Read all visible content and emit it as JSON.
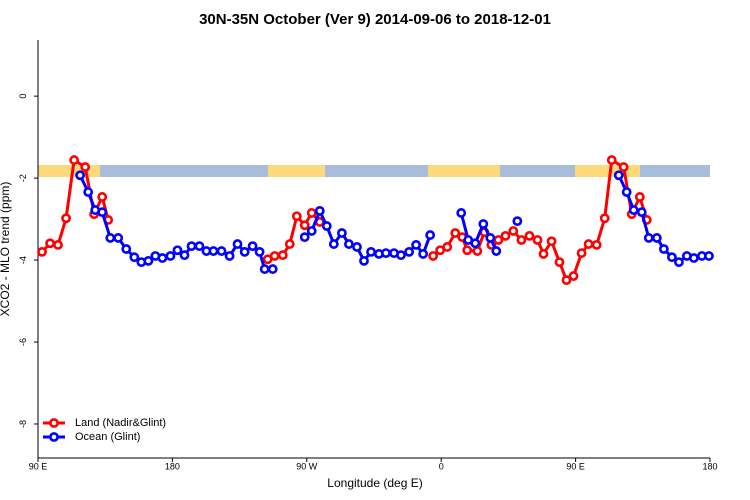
{
  "chart_data": {
    "type": "line",
    "title": "30N-35N October (Ver 9)   2014-09-06 to 2018-12-01",
    "x_label": "Longitude (deg E)",
    "y_label": "XCO2 - MLO trend (ppm)",
    "xlim": [
      90,
      540
    ],
    "ylim": [
      -8.83,
      1.37
    ],
    "xticks": [
      {
        "value": 90,
        "label": "90 E"
      },
      180,
      {
        "value": 270,
        "label": "90 W"
      },
      {
        "value": 360,
        "label": "0"
      },
      {
        "value": 450,
        "label": "90 E"
      },
      {
        "value": 540,
        "label": "180"
      }
    ],
    "yticks": [
      0,
      -2,
      -4,
      -6,
      -8
    ],
    "legend": "bottom-left",
    "series": [
      {
        "name": "Land (Nadir&Glint)",
        "color": "#ff0000",
        "x": [
          92.7,
          98.1,
          103.4,
          108.8,
          114.2,
          121.6,
          127.6,
          133.0,
          137.0,
          null,
          243.8,
          248.5,
          253.9,
          258.6,
          263.3,
          268.6,
          273.3,
          278.7,
          null,
          354.6,
          359.3,
          364.0,
          369.4,
          374.1,
          377.4,
          384.2,
          388.9,
          393.6,
          398.3,
          403.0,
          408.3,
          413.7,
          419.1,
          424.5,
          428.5,
          433.9,
          439.2,
          443.9,
          448.6,
          454.0,
          458.7,
          464.1,
          469.5,
          474.2,
          482.2,
          487.6,
          493.0,
          497.7
        ],
        "values": [
          -3.8,
          -3.59,
          -3.63,
          -2.98,
          -1.56,
          -1.73,
          -2.88,
          -2.46,
          -3.02,
          null,
          -3.98,
          -3.9,
          -3.88,
          -3.61,
          -2.93,
          -3.15,
          -2.85,
          -3.07,
          null,
          -3.9,
          -3.76,
          -3.68,
          -3.34,
          -3.44,
          -3.76,
          -3.78,
          -3.32,
          -3.63,
          -3.51,
          -3.41,
          -3.29,
          -3.51,
          -3.41,
          -3.51,
          -3.85,
          -3.54,
          -4.05,
          -4.49,
          -4.39,
          -3.83,
          -3.61,
          -3.63,
          -2.98,
          -1.56,
          -1.73,
          -2.88,
          -2.46,
          -3.02
        ]
      },
      {
        "name": "Ocean (Glint)",
        "color": "#0000ff",
        "x": [
          118.2,
          123.6,
          128.3,
          133.0,
          138.4,
          143.7,
          149.1,
          154.5,
          159.2,
          163.9,
          168.6,
          173.3,
          178.7,
          183.4,
          188.1,
          192.8,
          198.1,
          202.8,
          207.5,
          212.9,
          218.3,
          223.6,
          228.4,
          233.7,
          238.4,
          241.8,
          247.2,
          null,
          268.6,
          273.3,
          278.7,
          283.4,
          288.1,
          293.5,
          298.2,
          303.6,
          308.3,
          313.0,
          318.3,
          323.0,
          328.4,
          333.1,
          338.5,
          343.2,
          347.9,
          352.6,
          null,
          373.4,
          378.1,
          382.8,
          388.2,
          392.9,
          396.9,
          null,
          411.0,
          null,
          478.9,
          484.2,
          488.9,
          494.3,
          499.0,
          504.4,
          509.1,
          514.5,
          519.2,
          524.5,
          529.2,
          534.6,
          539.3
        ],
        "values": [
          -1.93,
          -2.34,
          -2.78,
          -2.83,
          -3.46,
          -3.46,
          -3.73,
          -3.93,
          -4.05,
          -4.02,
          -3.9,
          -3.95,
          -3.9,
          -3.76,
          -3.88,
          -3.66,
          -3.66,
          -3.78,
          -3.78,
          -3.78,
          -3.9,
          -3.61,
          -3.8,
          -3.66,
          -3.8,
          -4.22,
          -4.22,
          null,
          -3.44,
          -3.29,
          -2.8,
          -3.17,
          -3.61,
          -3.34,
          -3.61,
          -3.68,
          -4.02,
          -3.8,
          -3.85,
          -3.83,
          -3.83,
          -3.88,
          -3.8,
          -3.63,
          -3.85,
          -3.39,
          null,
          -2.85,
          -3.51,
          -3.59,
          -3.12,
          -3.46,
          -3.78,
          null,
          -3.05,
          null,
          -1.93,
          -2.34,
          -2.78,
          -2.83,
          -3.46,
          -3.46,
          -3.73,
          -3.93,
          -4.05,
          -3.9,
          -3.95,
          -3.9,
          -3.9
        ]
      }
    ]
  }
}
